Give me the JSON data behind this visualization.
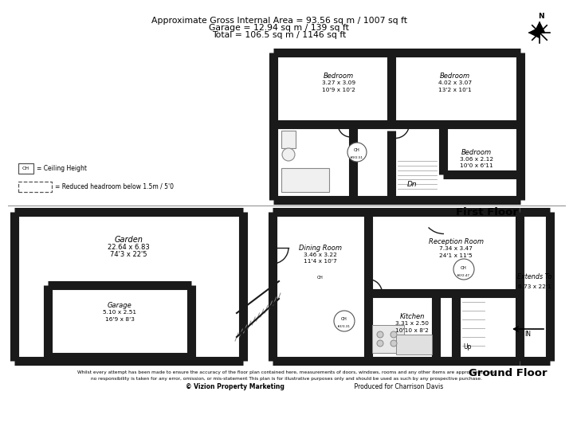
{
  "title_line1": "Approximate Gross Internal Area = 93.56 sq m / 1007 sq ft",
  "title_line2": "Garage = 12.94 sq m / 139 sq ft",
  "title_line3": "Total = 106.5 sq m / 1146 sq ft",
  "footer_line1": "Whilst every attempt has been made to ensure the accuracy of the floor plan contained here, measurements of doors, windows, rooms and any other items are approximate and",
  "footer_line2": "no responsibility is taken for any error, omission, or mis-statement This plan is for illustrative purposes only and should be used as such by any prospective purchase.",
  "footer_bold": "© Vizion Property Marketing",
  "footer_normal": "    Produced for Charrison Davis",
  "bg": "#ffffff",
  "wc": "#1a1a1a",
  "gc": "#aaaaaa",
  "ff_label": "First Floor",
  "gf_label": "Ground Floor",
  "ch_label": "= Ceiling Height",
  "red_label": "= Reduced headroom below 1.5m / 5'0",
  "bed1_l": "Bedroom",
  "bed1_d1": "3.27 x 3.09",
  "bed1_d2": "10'9 x 10'2",
  "bed2_l": "Bedroom",
  "bed2_d1": "4.02 x 3.07",
  "bed2_d2": "13'2 x 10'1",
  "bed3_l": "Bedroom",
  "bed3_d1": "3.06 x 2.12",
  "bed3_d2": "10'0 x 6'11",
  "garden_l": "Garden",
  "garden_d1": "22.64 x 6.83",
  "garden_d2": "74'3 x 22'5",
  "garage_l": "Garage",
  "garage_d1": "5.10 x 2.51",
  "garage_d2": "16'9 x 8'3",
  "din_l": "Dining Room",
  "din_d1": "3.46 x 3.22",
  "din_d2": "11'4 x 10'7",
  "rec_l": "Reception Room",
  "rec_d1": "7.34 x 3.47",
  "rec_d2": "24'1 x 11'5",
  "kit_l": "Kitchen",
  "kit_d1": "3.31 x 2.50",
  "kit_d2": "10'10 x 8'2",
  "ext_l": "Extends To",
  "ext_d1": "6.73 x 22'1"
}
